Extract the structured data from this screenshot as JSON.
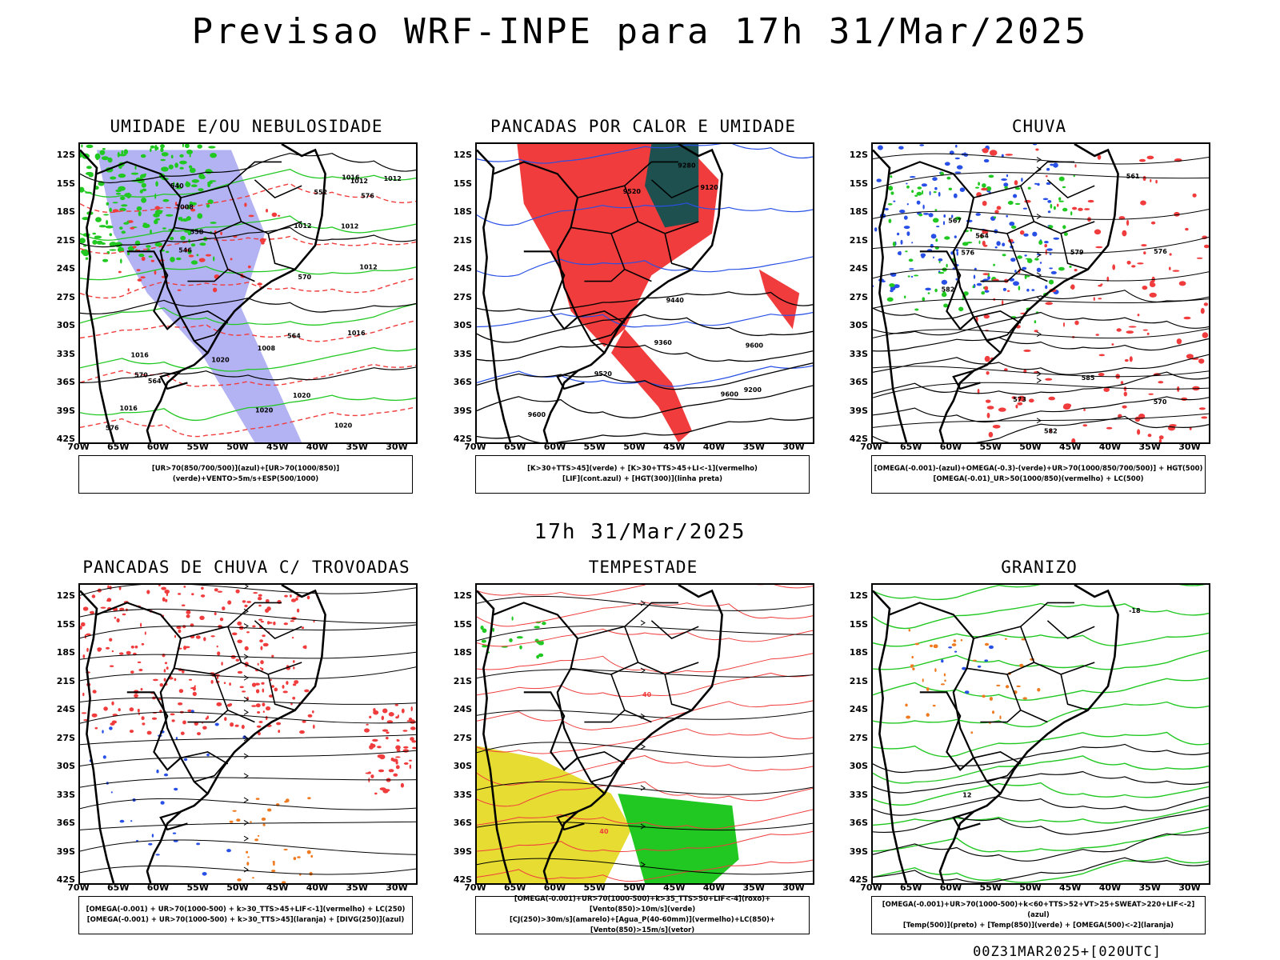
{
  "title": "Previsao WRF-INPE  para 17h 31/Mar/2025",
  "mid_title": "17h 31/Mar/2025",
  "footer_stamp": "00Z31MAR2025+[020UTC]",
  "axes": {
    "lat_labels": [
      "12S",
      "15S",
      "18S",
      "21S",
      "24S",
      "27S",
      "30S",
      "33S",
      "36S",
      "39S",
      "42S"
    ],
    "lon_labels": [
      "70W",
      "65W",
      "60W",
      "55W",
      "50W",
      "45W",
      "40W",
      "35W",
      "30W"
    ]
  },
  "colors": {
    "rain_red": "#f03c3c",
    "humidity_blue": "#a6a6f2",
    "green": "#22c822",
    "dark_teal": "#1e5050",
    "yellow": "#e6dc32",
    "orange": "#f07a20"
  },
  "panels": [
    {
      "title": "UMIDADE E/OU NEBULOSIDADE",
      "legend": [
        "[UR>70(850/700/500)](azul)+[UR>70(1000/850)](verde)+VENTO>5m/s+ESP(500/1000)"
      ],
      "contour_labels": [
        "1012",
        "1008",
        "1012",
        "1016",
        "1012",
        "1020",
        "1016",
        "1020",
        "1020",
        "1016",
        "1008",
        "1012",
        "1016",
        "1020",
        "1012",
        "576",
        "570",
        "564",
        "558",
        "552",
        "546",
        "540",
        "576",
        "570",
        "564"
      ]
    },
    {
      "title": "PANCADAS POR CALOR E UMIDADE",
      "legend": [
        "[K>30+TTS>45](verde) + [K>30+TTS>45+LI<-1](vermelho)",
        "[LIF](cont.azul) + [HGT(300)](linha preta)"
      ],
      "contour_labels": [
        "9600",
        "9600",
        "9440",
        "9360",
        "9520",
        "9280",
        "9200",
        "9120",
        "9600",
        "9520"
      ]
    },
    {
      "title": "CHUVA",
      "legend": [
        "[OMEGA(-0.001)-(azul)+OMEGA(-0.3)-(verde)+UR>70(1000/850/700/500)] + HGT(500)",
        "[OMEGA(-0.01)_UR>50(1000/850)(vermelho) + LC(500)"
      ],
      "contour_labels": [
        "585",
        "582",
        "576",
        "573",
        "570",
        "567",
        "564",
        "561",
        "582",
        "579",
        "576"
      ]
    },
    {
      "title": "PANCADAS DE CHUVA C/ TROVOADAS",
      "legend": [
        "[OMEGA(-0.001) + UR>70(1000-500) + k>30_TTS>45+LIF<-1](vermelho) + LC(250)",
        "[OMEGA(-0.001) + UR>70(1000-500) + k>30_TTS>45](laranja) + [DIVG(250)](azul)"
      ],
      "contour_labels": []
    },
    {
      "title": "TEMPESTADE",
      "legend": [
        "[OMEGA(-0.001)+UR>70(1000-500)+k>35_TTS>50+LIF<-4](roxo)+[Vento(850)>10m/s](verde)",
        "[CJ(250)>30m/s](amarelo)+[Agua_P(40-60mm)](vermelho)+LC(850)+[Vento(850)>15m/s](vetor)"
      ],
      "contour_labels": [
        "40",
        "40"
      ]
    },
    {
      "title": "GRANIZO",
      "legend": [
        "[OMEGA(-0.001)+UR>70(1000-500)+k<60+TTS>52+VT>25+SWEAT>220+LIF<-2](azul)",
        "[Temp(500)](preto) + [Temp(850)](verde) + [OMEGA(500)<-2](laranja)"
      ],
      "contour_labels": [
        "-18",
        "12"
      ]
    }
  ]
}
